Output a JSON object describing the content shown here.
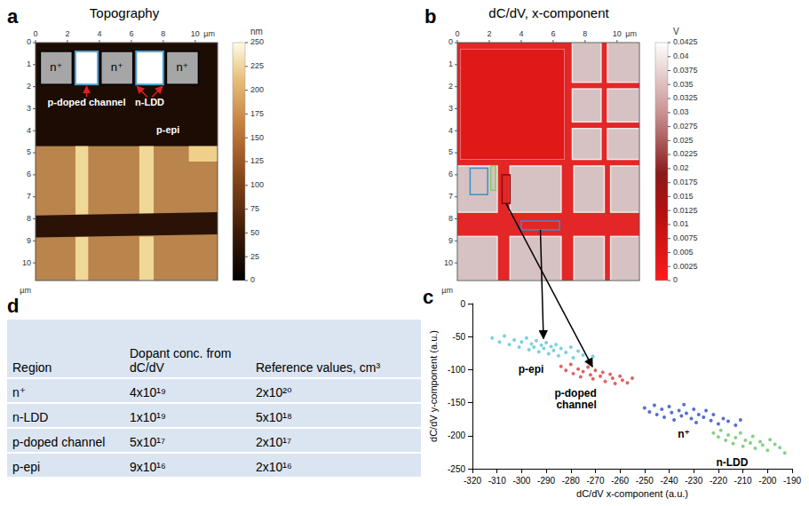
{
  "panels": [
    {
      "letter": "a",
      "title": "Topography",
      "x_unit": "µm",
      "y_unit": "µm",
      "xlim": [
        0,
        11.4
      ],
      "ylim": [
        0,
        10.8
      ],
      "xticks": [
        0,
        2,
        4,
        6,
        8,
        10
      ],
      "yticks": [
        0,
        1,
        2,
        3,
        4,
        5,
        6,
        7,
        8,
        9,
        10
      ],
      "colorbar": {
        "unit": "nm",
        "range": [
          0,
          250
        ],
        "ticks": [
          0,
          25,
          50,
          75,
          100,
          125,
          150,
          175,
          200,
          225,
          250
        ]
      },
      "inset_labels": [
        "n⁺",
        "n⁺",
        "n⁺"
      ],
      "annotations": [
        "p-doped channel",
        "n-LDD",
        "p-epi"
      ]
    },
    {
      "letter": "b",
      "title": "dC/dV, x-component",
      "x_unit": "µm",
      "y_unit": "µm",
      "xlim": [
        0,
        11.4
      ],
      "ylim": [
        0,
        10.8
      ],
      "xticks": [
        0,
        2,
        4,
        6,
        8,
        10
      ],
      "yticks": [
        0,
        1,
        2,
        3,
        4,
        5,
        6,
        7,
        8,
        9,
        10
      ],
      "colorbar": {
        "unit": "V",
        "range": [
          0,
          0.0425
        ],
        "ticks": [
          0,
          0.0025,
          0.005,
          0.0075,
          0.01,
          0.0125,
          0.015,
          0.0175,
          0.02,
          0.0225,
          0.025,
          0.0275,
          0.03,
          0.0325,
          0.035,
          0.0375,
          0.04,
          0.0425
        ]
      }
    }
  ],
  "chart_data": {
    "letter": "c",
    "type": "scatter",
    "x_label": "dC/dV x-component (a.u.)",
    "y_label": "dC/dV y-component (a.u.)",
    "xlim": [
      -320,
      -190
    ],
    "xticks": [
      -320,
      -310,
      -300,
      -290,
      -280,
      -270,
      -260,
      -250,
      -240,
      -230,
      -220,
      -210,
      -200,
      -190
    ],
    "ylim": [
      -250,
      0
    ],
    "yticks": [
      -250,
      -200,
      -150,
      -100,
      -50,
      0
    ],
    "grid": false,
    "series": [
      {
        "name": "p-epi",
        "color": "#56c6d6",
        "x": [
          -312,
          -309,
          -307,
          -305,
          -303,
          -301,
          -300,
          -298,
          -297,
          -296,
          -295,
          -294,
          -293,
          -292,
          -291,
          -290,
          -289,
          -288,
          -287,
          -286,
          -285,
          -284,
          -282,
          -280,
          -279,
          -277,
          -275,
          -273,
          -271
        ],
        "values": [
          -52,
          -58,
          -49,
          -62,
          -55,
          -66,
          -58,
          -52,
          -70,
          -61,
          -66,
          -56,
          -73,
          -63,
          -68,
          -59,
          -76,
          -65,
          -71,
          -62,
          -79,
          -68,
          -74,
          -66,
          -82,
          -72,
          -78,
          -85,
          -80
        ]
      },
      {
        "name": "p-doped channel",
        "color": "#d83c3c",
        "x": [
          -284,
          -282,
          -280,
          -279,
          -277,
          -276,
          -275,
          -273,
          -272,
          -271,
          -270,
          -268,
          -267,
          -266,
          -264,
          -263,
          -262,
          -260,
          -259,
          -257,
          -255
        ],
        "values": [
          -95,
          -101,
          -92,
          -106,
          -99,
          -111,
          -103,
          -96,
          -108,
          -114,
          -101,
          -110,
          -104,
          -118,
          -107,
          -113,
          -121,
          -110,
          -116,
          -120,
          -113
        ]
      },
      {
        "name": "n⁺",
        "color": "#2a4cc0",
        "x": [
          -250,
          -248,
          -246,
          -245,
          -243,
          -242,
          -240,
          -239,
          -238,
          -236,
          -235,
          -234,
          -233,
          -231,
          -230,
          -229,
          -228,
          -226,
          -225,
          -223,
          -222,
          -220,
          -218,
          -216,
          -213,
          -211
        ],
        "values": [
          -158,
          -164,
          -154,
          -168,
          -160,
          -172,
          -156,
          -165,
          -176,
          -162,
          -170,
          -153,
          -166,
          -174,
          -160,
          -180,
          -168,
          -172,
          -162,
          -177,
          -168,
          -182,
          -174,
          -178,
          -184,
          -176
        ]
      },
      {
        "name": "n-LDD",
        "color": "#6cc46c",
        "x": [
          -222,
          -220,
          -219,
          -217,
          -216,
          -214,
          -213,
          -211,
          -210,
          -209,
          -207,
          -206,
          -205,
          -203,
          -202,
          -200,
          -199,
          -197,
          -195,
          -193
        ],
        "values": [
          -196,
          -202,
          -192,
          -207,
          -199,
          -212,
          -203,
          -196,
          -216,
          -207,
          -211,
          -201,
          -219,
          -209,
          -214,
          -222,
          -206,
          -213,
          -218,
          -226
        ]
      }
    ]
  },
  "table": {
    "letter": "d",
    "header": [
      "Region",
      "Dopant conc. from dC/dV",
      "Reference values, cm³"
    ],
    "rows": [
      [
        "n⁺",
        "4x10¹⁹",
        "2x10²⁰"
      ],
      [
        "n-LDD",
        "1x10¹⁹",
        "5x10¹⁸"
      ],
      [
        "p-doped channel",
        "5x10¹⁷",
        "2x10¹⁷"
      ],
      [
        "p-epi",
        "9x10¹⁶",
        "2x10¹⁶"
      ]
    ]
  }
}
